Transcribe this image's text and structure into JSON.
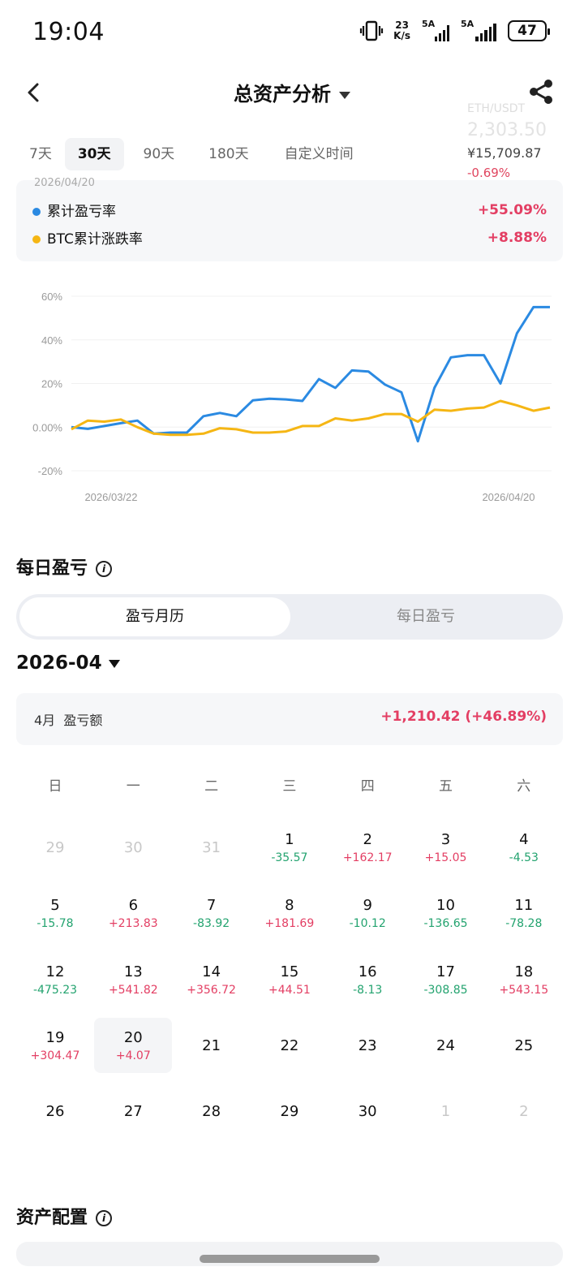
{
  "status_bar": {
    "time": "19:04",
    "net_speed_top": "23",
    "net_speed_bottom": "K/s",
    "sim1": "5A",
    "sim2": "5A",
    "battery": "47"
  },
  "header": {
    "title": "总资产分析"
  },
  "tabs": [
    "7天",
    "30天",
    "90天",
    "180天",
    "自定义时间"
  ],
  "active_tab": "30天",
  "ticker": {
    "pair": "ETH/USDT",
    "price": "2,303.50",
    "cny": "¥15,709.87",
    "change": "-0.69%"
  },
  "legend": {
    "date": "2026/04/20",
    "items": [
      {
        "label": "累计盈亏率",
        "value": "+55.09%",
        "color": "#2b8ae2"
      },
      {
        "label": "BTC累计涨跌率",
        "value": "+8.88%",
        "color": "#f5b614"
      }
    ]
  },
  "chart_data": {
    "type": "line",
    "x_start_label": "2026/03/22",
    "x_end_label": "2026/04/20",
    "y_ticks": [
      "60%",
      "40%",
      "20%",
      "0.00%",
      "-20%"
    ],
    "ylim": [
      -20,
      60
    ],
    "series": [
      {
        "name": "累计盈亏率",
        "color": "#2b8ae2",
        "values": [
          0,
          -0.8,
          0.5,
          1.8,
          3,
          -3,
          -2.5,
          -2.5,
          5,
          6.5,
          5,
          12.3,
          13,
          12.7,
          12,
          22,
          18,
          26,
          25.5,
          19.5,
          16,
          -6.5,
          18,
          32,
          33,
          33,
          20,
          43,
          55,
          55
        ]
      },
      {
        "name": "BTC累计涨跌率",
        "color": "#f5b614",
        "values": [
          -1,
          3,
          2.5,
          3.5,
          0,
          -3,
          -3.5,
          -3.5,
          -3,
          -0.5,
          -1,
          -2.5,
          -2.5,
          -2,
          0.5,
          0.5,
          4,
          3,
          4,
          6,
          6,
          2.5,
          8,
          7.5,
          8.5,
          9,
          12,
          10,
          7.5,
          9
        ]
      }
    ]
  },
  "daily": {
    "title": "每日盈亏",
    "segments": [
      "盈亏月历",
      "每日盈亏"
    ],
    "month": "2026-04",
    "summary_label": "4月  盈亏额",
    "summary_value": "+1,210.42 (+46.89%)",
    "weekdays": [
      "日",
      "一",
      "二",
      "三",
      "四",
      "五",
      "六"
    ],
    "days": [
      {
        "d": "29",
        "v": "",
        "muted": true
      },
      {
        "d": "30",
        "v": "",
        "muted": true
      },
      {
        "d": "31",
        "v": "",
        "muted": true
      },
      {
        "d": "1",
        "v": "-35.57"
      },
      {
        "d": "2",
        "v": "+162.17"
      },
      {
        "d": "3",
        "v": "+15.05"
      },
      {
        "d": "4",
        "v": "-4.53"
      },
      {
        "d": "5",
        "v": "-15.78"
      },
      {
        "d": "6",
        "v": "+213.83"
      },
      {
        "d": "7",
        "v": "-83.92"
      },
      {
        "d": "8",
        "v": "+181.69"
      },
      {
        "d": "9",
        "v": "-10.12"
      },
      {
        "d": "10",
        "v": "-136.65"
      },
      {
        "d": "11",
        "v": "-78.28"
      },
      {
        "d": "12",
        "v": "-475.23"
      },
      {
        "d": "13",
        "v": "+541.82"
      },
      {
        "d": "14",
        "v": "+356.72"
      },
      {
        "d": "15",
        "v": "+44.51"
      },
      {
        "d": "16",
        "v": "-8.13"
      },
      {
        "d": "17",
        "v": "-308.85"
      },
      {
        "d": "18",
        "v": "+543.15"
      },
      {
        "d": "19",
        "v": "+304.47"
      },
      {
        "d": "20",
        "v": "+4.07",
        "selected": true
      },
      {
        "d": "21",
        "v": ""
      },
      {
        "d": "22",
        "v": ""
      },
      {
        "d": "23",
        "v": ""
      },
      {
        "d": "24",
        "v": ""
      },
      {
        "d": "25",
        "v": ""
      },
      {
        "d": "26",
        "v": ""
      },
      {
        "d": "27",
        "v": ""
      },
      {
        "d": "28",
        "v": ""
      },
      {
        "d": "29",
        "v": ""
      },
      {
        "d": "30",
        "v": ""
      },
      {
        "d": "1",
        "v": "",
        "muted": true
      },
      {
        "d": "2",
        "v": "",
        "muted": true
      }
    ]
  },
  "asset_section": {
    "title": "资产配置"
  },
  "colors": {
    "positive": "#e33e63",
    "negative": "#23a36f"
  }
}
